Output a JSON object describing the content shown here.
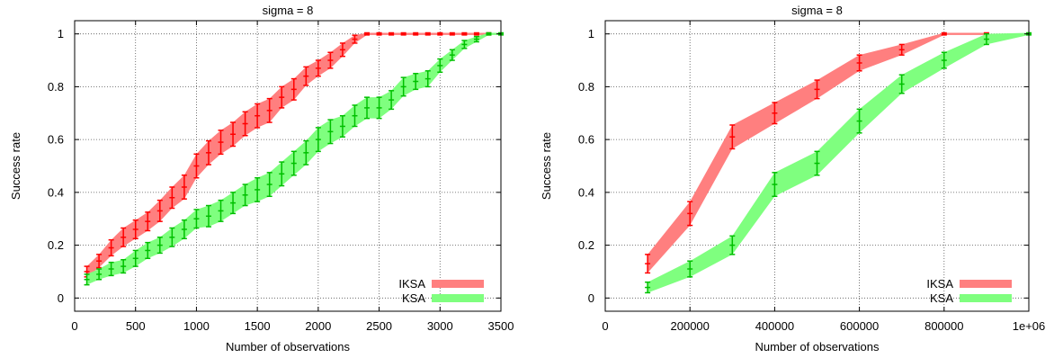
{
  "chart_data": [
    {
      "type": "area",
      "title": "sigma = 8",
      "xlabel": "Number of observations",
      "ylabel": "Success rate",
      "xlim": [
        0,
        3500
      ],
      "ylim": [
        -0.05,
        1.05
      ],
      "xticks": [
        0,
        500,
        1000,
        1500,
        2000,
        2500,
        3000,
        3500
      ],
      "xtick_labels": [
        "0",
        "500",
        "1000",
        "1500",
        "2000",
        "2500",
        "3000",
        "3500"
      ],
      "yticks": [
        0,
        0.2,
        0.4,
        0.6,
        0.8,
        1
      ],
      "ytick_labels": [
        "0",
        "0.2",
        "0.4",
        "0.6",
        "0.8",
        "1"
      ],
      "grid": true,
      "legend_position": "bottom-right",
      "series": [
        {
          "name": "IKSA",
          "color": "#ff0000",
          "fill": "#ff7f7f",
          "x": [
            100,
            200,
            300,
            400,
            500,
            600,
            700,
            800,
            900,
            1000,
            1100,
            1200,
            1300,
            1400,
            1500,
            1600,
            1700,
            1800,
            1900,
            2000,
            2100,
            2200,
            2300,
            2400,
            2500,
            2600,
            2700,
            2800,
            2900,
            3000,
            3100,
            3200,
            3300,
            3400
          ],
          "y": [
            0.1,
            0.14,
            0.19,
            0.23,
            0.26,
            0.29,
            0.33,
            0.38,
            0.42,
            0.5,
            0.55,
            0.59,
            0.62,
            0.66,
            0.69,
            0.71,
            0.76,
            0.79,
            0.84,
            0.87,
            0.9,
            0.94,
            0.98,
            1,
            1,
            1,
            1,
            1,
            1,
            1,
            1,
            1,
            1,
            1
          ],
          "error": [
            0.02,
            0.025,
            0.03,
            0.035,
            0.035,
            0.035,
            0.04,
            0.04,
            0.045,
            0.045,
            0.045,
            0.045,
            0.045,
            0.045,
            0.045,
            0.045,
            0.04,
            0.04,
            0.035,
            0.03,
            0.03,
            0.025,
            0.015,
            0.004,
            0.004,
            0.004,
            0.004,
            0.004,
            0.004,
            0.004,
            0.004,
            0.004,
            0.004,
            0.004
          ]
        },
        {
          "name": "KSA",
          "color": "#00c000",
          "fill": "#7fff7f",
          "x": [
            100,
            200,
            300,
            400,
            500,
            600,
            700,
            800,
            900,
            1000,
            1100,
            1200,
            1300,
            1400,
            1500,
            1600,
            1700,
            1800,
            1900,
            2000,
            2100,
            2200,
            2300,
            2400,
            2500,
            2600,
            2700,
            2800,
            2900,
            3000,
            3100,
            3200,
            3300,
            3400,
            3500
          ],
          "y": [
            0.07,
            0.09,
            0.11,
            0.12,
            0.15,
            0.18,
            0.2,
            0.23,
            0.26,
            0.3,
            0.31,
            0.33,
            0.36,
            0.39,
            0.41,
            0.43,
            0.47,
            0.51,
            0.55,
            0.6,
            0.63,
            0.65,
            0.69,
            0.72,
            0.72,
            0.75,
            0.8,
            0.82,
            0.83,
            0.88,
            0.92,
            0.96,
            0.98,
            1,
            1
          ],
          "error": [
            0.02,
            0.02,
            0.025,
            0.025,
            0.03,
            0.03,
            0.03,
            0.035,
            0.035,
            0.035,
            0.04,
            0.04,
            0.04,
            0.04,
            0.045,
            0.045,
            0.045,
            0.045,
            0.045,
            0.045,
            0.045,
            0.04,
            0.04,
            0.04,
            0.04,
            0.035,
            0.035,
            0.03,
            0.03,
            0.025,
            0.02,
            0.015,
            0.01,
            0.004,
            0.004
          ]
        }
      ]
    },
    {
      "type": "area",
      "title": "sigma = 8",
      "xlabel": "Number of observations",
      "ylabel": "Success rate",
      "xlim": [
        0,
        1000000
      ],
      "ylim": [
        -0.05,
        1.05
      ],
      "xticks": [
        0,
        200000,
        400000,
        600000,
        800000,
        1000000
      ],
      "xtick_labels": [
        "0",
        "200000",
        "400000",
        "600000",
        "800000",
        "1e+06"
      ],
      "yticks": [
        0,
        0.2,
        0.4,
        0.6,
        0.8,
        1
      ],
      "ytick_labels": [
        "0",
        "0.2",
        "0.4",
        "0.6",
        "0.8",
        "1"
      ],
      "grid": true,
      "legend_position": "bottom-right",
      "series": [
        {
          "name": "IKSA",
          "color": "#ff0000",
          "fill": "#ff7f7f",
          "x": [
            100000,
            200000,
            300000,
            400000,
            500000,
            600000,
            700000,
            800000,
            900000
          ],
          "y": [
            0.13,
            0.32,
            0.61,
            0.7,
            0.79,
            0.89,
            0.94,
            1,
            1
          ],
          "error": [
            0.035,
            0.045,
            0.045,
            0.04,
            0.035,
            0.03,
            0.02,
            0.004,
            0.004
          ]
        },
        {
          "name": "KSA",
          "color": "#00c000",
          "fill": "#7fff7f",
          "x": [
            100000,
            200000,
            300000,
            400000,
            500000,
            600000,
            700000,
            800000,
            900000,
            1000000
          ],
          "y": [
            0.04,
            0.11,
            0.2,
            0.43,
            0.51,
            0.67,
            0.81,
            0.9,
            0.98,
            1
          ],
          "error": [
            0.02,
            0.03,
            0.035,
            0.045,
            0.045,
            0.045,
            0.035,
            0.03,
            0.02,
            0.004
          ]
        }
      ]
    }
  ]
}
